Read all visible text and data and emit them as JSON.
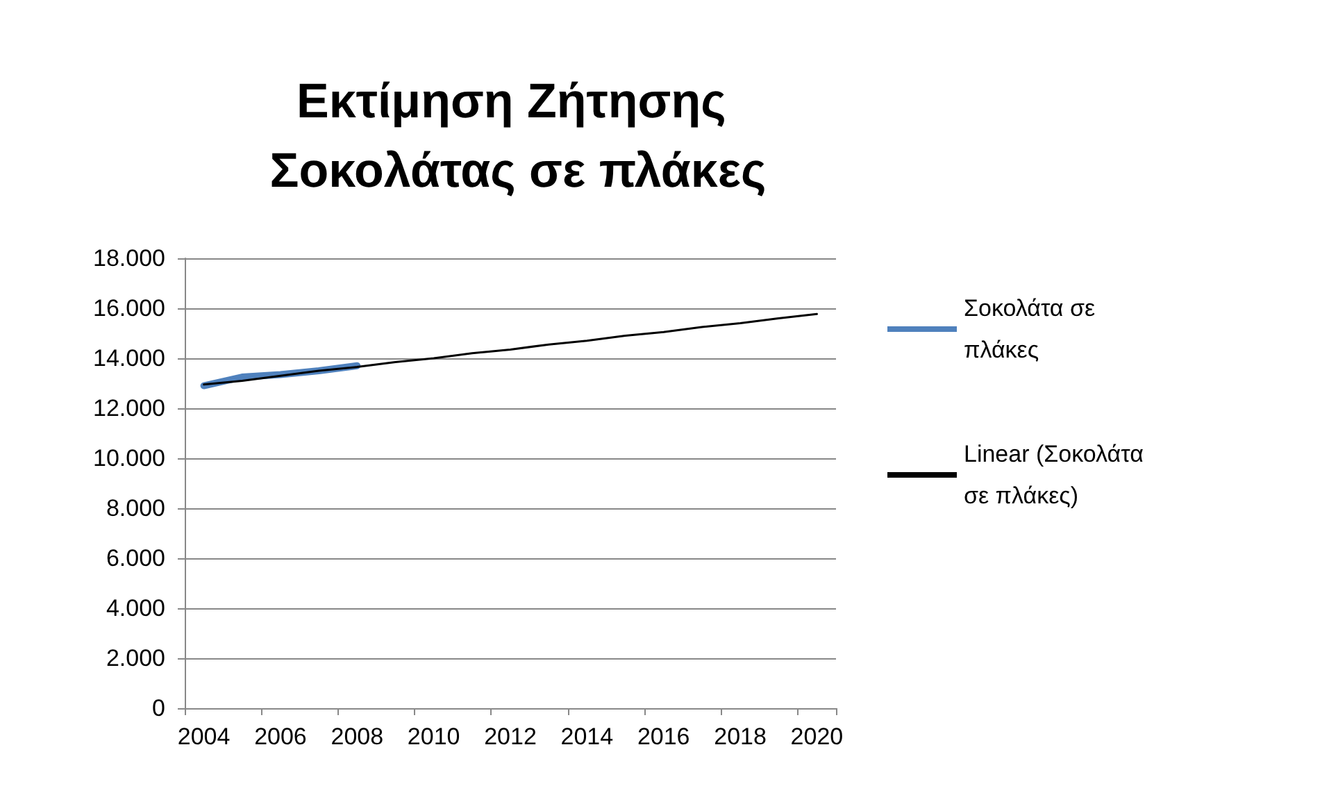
{
  "chart_data": {
    "type": "line",
    "title": "Εκτίμηση Ζήτησης Σοκολάτας σε πλάκες",
    "categories": [
      "2004",
      null,
      "2006",
      null,
      "2008",
      null,
      "2010",
      null,
      "2012",
      null,
      "2014",
      null,
      "2016",
      null,
      "2018",
      null,
      "2020"
    ],
    "series": [
      {
        "name": "Σοκολάτα σε πλάκες",
        "color": "#4f81bd",
        "values": [
          12900,
          13250,
          13350,
          13500,
          13700,
          null,
          null,
          null,
          null,
          null,
          null,
          null,
          null,
          null,
          null,
          null,
          null
        ]
      },
      {
        "name": "Linear (Σοκολάτα σε πλάκες)",
        "color": "#000000",
        "values": [
          12950,
          13100,
          13300,
          13500,
          13650,
          13850,
          14000,
          14200,
          14350,
          14550,
          14700,
          14900,
          15050,
          15250,
          15400,
          15600,
          15770
        ]
      }
    ],
    "ylim": [
      0,
      18000
    ],
    "yticks": [
      {
        "value": 0,
        "label": "0"
      },
      {
        "value": 2000,
        "label": "2.000"
      },
      {
        "value": 4000,
        "label": "4.000"
      },
      {
        "value": 6000,
        "label": "6.000"
      },
      {
        "value": 8000,
        "label": "8.000"
      },
      {
        "value": 10000,
        "label": "10.000"
      },
      {
        "value": 12000,
        "label": "12.000"
      },
      {
        "value": 14000,
        "label": "14.000"
      },
      {
        "value": 16000,
        "label": "16.000"
      },
      {
        "value": 18000,
        "label": "18.000"
      }
    ],
    "grid": "y",
    "legend": "right",
    "marker": "none",
    "line_style": "solid"
  }
}
